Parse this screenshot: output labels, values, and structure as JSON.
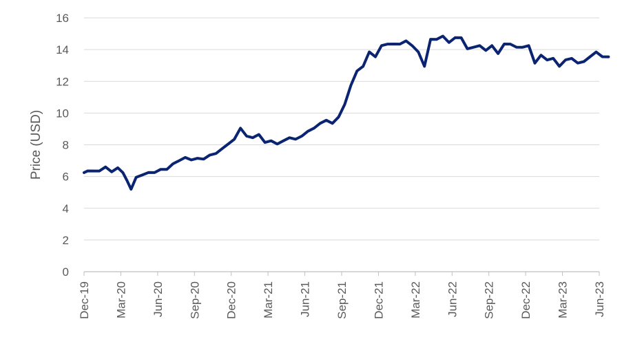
{
  "chart_data": {
    "type": "line",
    "title": "",
    "xlabel": "",
    "ylabel": "Price (USD)",
    "ylim": [
      0,
      16
    ],
    "yticks": [
      0,
      2,
      4,
      6,
      8,
      10,
      12,
      14,
      16
    ],
    "grid": true,
    "legend": "none",
    "x_tick_labels": [
      "Dec-19",
      "Mar-20",
      "Jun-20",
      "Sep-20",
      "Dec-20",
      "Mar-21",
      "Jun-21",
      "Sep-21",
      "Dec-21",
      "Mar-22",
      "Jun-22",
      "Sep-22",
      "Dec-22",
      "Mar-23",
      "Jun-23"
    ],
    "series": [
      {
        "color": "#0a2472",
        "x": [
          "Dec-19",
          "Dec-19",
          "Jan-20",
          "Jan-20",
          "Feb-20",
          "Feb-20",
          "Mar-20",
          "Mar-20",
          "Mar-20",
          "Apr-20",
          "Apr-20",
          "May-20",
          "May-20",
          "Jun-20",
          "Jun-20",
          "Jul-20",
          "Jul-20",
          "Aug-20",
          "Aug-20",
          "Sep-20",
          "Sep-20",
          "Oct-20",
          "Oct-20",
          "Nov-20",
          "Nov-20",
          "Dec-20",
          "Dec-20",
          "Jan-21",
          "Jan-21",
          "Feb-21",
          "Feb-21",
          "Mar-21",
          "Mar-21",
          "Apr-21",
          "Apr-21",
          "May-21",
          "May-21",
          "Jun-21",
          "Jun-21",
          "Jul-21",
          "Jul-21",
          "Aug-21",
          "Aug-21",
          "Sep-21",
          "Sep-21",
          "Oct-21",
          "Oct-21",
          "Nov-21",
          "Nov-21",
          "Dec-21",
          "Dec-21",
          "Jan-22",
          "Jan-22",
          "Feb-22",
          "Feb-22",
          "Mar-22",
          "Mar-22",
          "Apr-22",
          "Apr-22",
          "May-22",
          "May-22",
          "Jun-22",
          "Jun-22",
          "Jul-22",
          "Jul-22",
          "Aug-22",
          "Aug-22",
          "Sep-22",
          "Sep-22",
          "Oct-22",
          "Oct-22",
          "Nov-22",
          "Nov-22",
          "Dec-22",
          "Dec-22",
          "Jan-23",
          "Jan-23",
          "Feb-23",
          "Feb-23",
          "Mar-23",
          "Mar-23",
          "Apr-23",
          "Apr-23",
          "May-23",
          "May-23",
          "Jun-23",
          "Jun-23"
        ],
        "y": [
          6.3,
          6.3,
          6.4,
          6.55,
          6.35,
          6.5,
          6.3,
          5.7,
          5.25,
          5.9,
          6.15,
          6.2,
          6.3,
          6.4,
          6.5,
          6.75,
          7.05,
          7.15,
          7.1,
          7.1,
          7.15,
          7.3,
          7.5,
          7.7,
          8.1,
          8.3,
          9.1,
          8.5,
          8.5,
          8.6,
          8.2,
          8.2,
          8.1,
          8.2,
          8.5,
          8.3,
          8.6,
          8.8,
          9.1,
          9.3,
          9.6,
          9.3,
          9.8,
          10.5,
          11.8,
          12.6,
          13.0,
          13.8,
          13.6,
          14.2,
          14.4,
          14.3,
          14.4,
          14.5,
          14.3,
          13.8,
          13.0,
          14.6,
          14.7,
          14.8,
          14.5,
          14.7,
          14.8,
          14.0,
          14.2,
          14.2,
          14.0,
          14.2,
          13.8,
          14.3,
          14.4,
          14.1,
          14.2,
          14.2,
          13.2,
          13.6,
          13.4,
          13.4,
          13.0,
          13.3,
          13.5,
          13.1,
          13.3,
          13.5,
          13.9,
          13.5,
          13.6
        ]
      }
    ]
  }
}
